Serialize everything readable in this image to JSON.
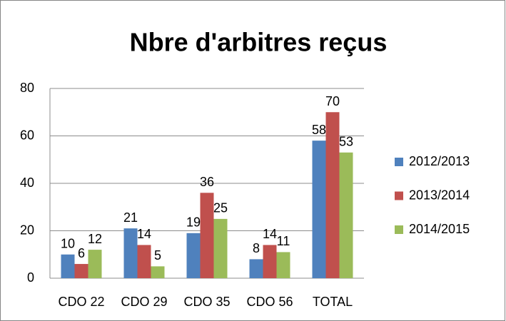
{
  "chart_data": {
    "type": "bar",
    "title": "Nbre d'arbitres reçus",
    "categories": [
      "CDO 22",
      "CDO 29",
      "CDO 35",
      "CDO 56",
      "TOTAL"
    ],
    "series": [
      {
        "name": "2012/2013",
        "color": "#4f81bd",
        "values": [
          10,
          21,
          19,
          8,
          58
        ]
      },
      {
        "name": "2013/2014",
        "color": "#c0504d",
        "values": [
          6,
          14,
          36,
          14,
          70
        ]
      },
      {
        "name": "2014/2015",
        "color": "#9bbb59",
        "values": [
          12,
          5,
          25,
          11,
          53
        ]
      }
    ],
    "ylim": [
      0,
      80
    ],
    "yticks": [
      0,
      20,
      40,
      60,
      80
    ],
    "grid": true,
    "legend": "right"
  }
}
